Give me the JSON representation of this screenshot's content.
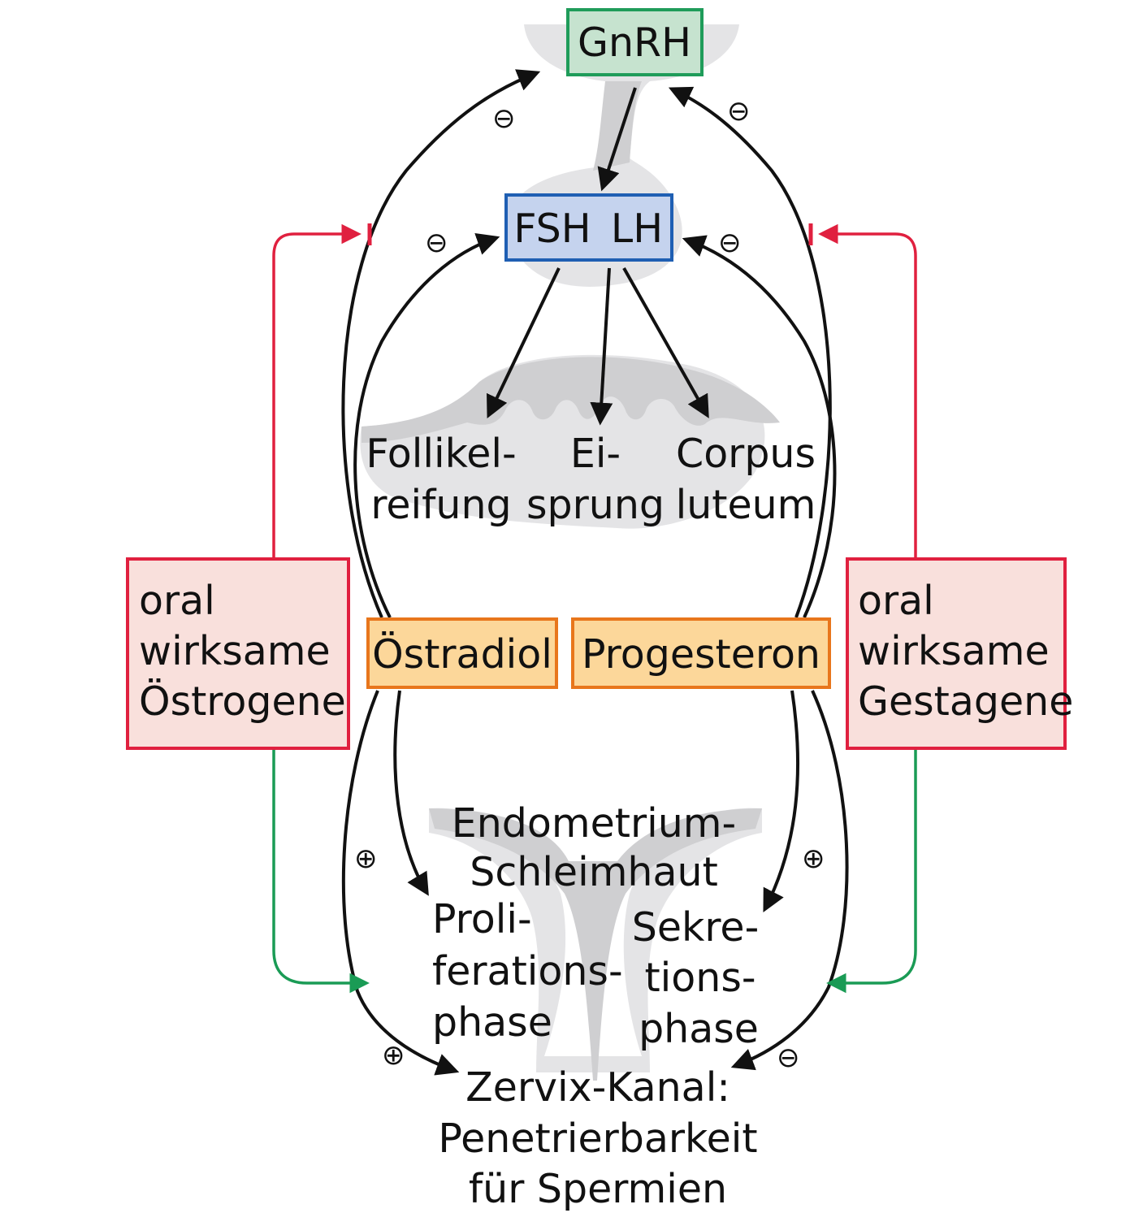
{
  "hormones": {
    "gnrh": "GnRH",
    "fsh": "FSH",
    "lh": "LH",
    "oestradiol": "Östradiol",
    "progesteron": "Progesteron"
  },
  "ovary": {
    "follikel_line1": "Follikel-",
    "follikel_line2": "reifung",
    "eisprung_line1": "Ei-",
    "eisprung_line2": "sprung",
    "corpus_line1": "Corpus",
    "corpus_line2": "luteum"
  },
  "drugs": {
    "oestrogene": [
      "oral",
      "wirksame",
      "Östrogene"
    ],
    "gestagene": [
      "oral",
      "wirksame",
      "Gestagene"
    ]
  },
  "uterus": {
    "endometrium_line1": "Endometrium-",
    "endometrium_line2": "Schleimhaut",
    "prolif_line1": "Proli-",
    "prolif_line2": "ferations-",
    "prolif_line3": "phase",
    "sekret_line1": "Sekre-",
    "sekret_line2": "tions-",
    "sekret_line3": "phase"
  },
  "cervix": {
    "line1": "Zervix-Kanal:",
    "line2": "Penetrierbarkeit",
    "line3": "für Spermien"
  },
  "signs": {
    "minus": "⊖",
    "plus": "⊕"
  },
  "colors": {
    "gnrh_fill": "#c6e3cf",
    "gnrh_border": "#1f9c5a",
    "fshlh_fill": "#c5d3ee",
    "fshlh_border": "#1f5fb3",
    "hormone_fill": "#fcd79a",
    "hormone_border": "#e8761c",
    "drug_fill": "#f9e0dc",
    "drug_border": "#e0203f",
    "inhibit_line": "#e0203f",
    "stimulate_line": "#1a9b55",
    "organ_gray": "#cfcfd1",
    "organ_light": "#e4e4e6"
  }
}
